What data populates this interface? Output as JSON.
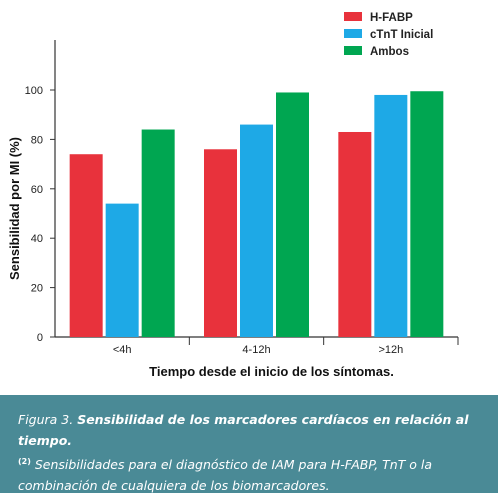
{
  "chart_data": {
    "type": "bar",
    "categories": [
      "<4h",
      "4-12h",
      ">12h"
    ],
    "series": [
      {
        "name": "H-FABP",
        "values": [
          74,
          76,
          83
        ]
      },
      {
        "name": "cTnT Inicial",
        "values": [
          54,
          86,
          98
        ]
      },
      {
        "name": "Ambos",
        "values": [
          84,
          99,
          99.5
        ]
      }
    ],
    "colors": [
      "#e8323c",
      "#1ea9e6",
      "#00a651"
    ],
    "title": "",
    "xlabel": "Tiempo desde el inicio de los síntomas.",
    "ylabel": "Sensibilidad por MI (%)",
    "ylim": [
      0,
      100
    ],
    "yticks": [
      0,
      20,
      40,
      60,
      80,
      100
    ],
    "grid": false,
    "legend_position": "top-right"
  },
  "caption": {
    "figure_label": "Figura 3.",
    "title": "Sensibilidad de los marcadores cardíacos en relación al tiempo.",
    "superscript": "(2)",
    "body": "Sensibilidades para el diagnóstico de IAM para H-FABP, TnT o la combinación de cualquiera de los biomarcadores."
  }
}
